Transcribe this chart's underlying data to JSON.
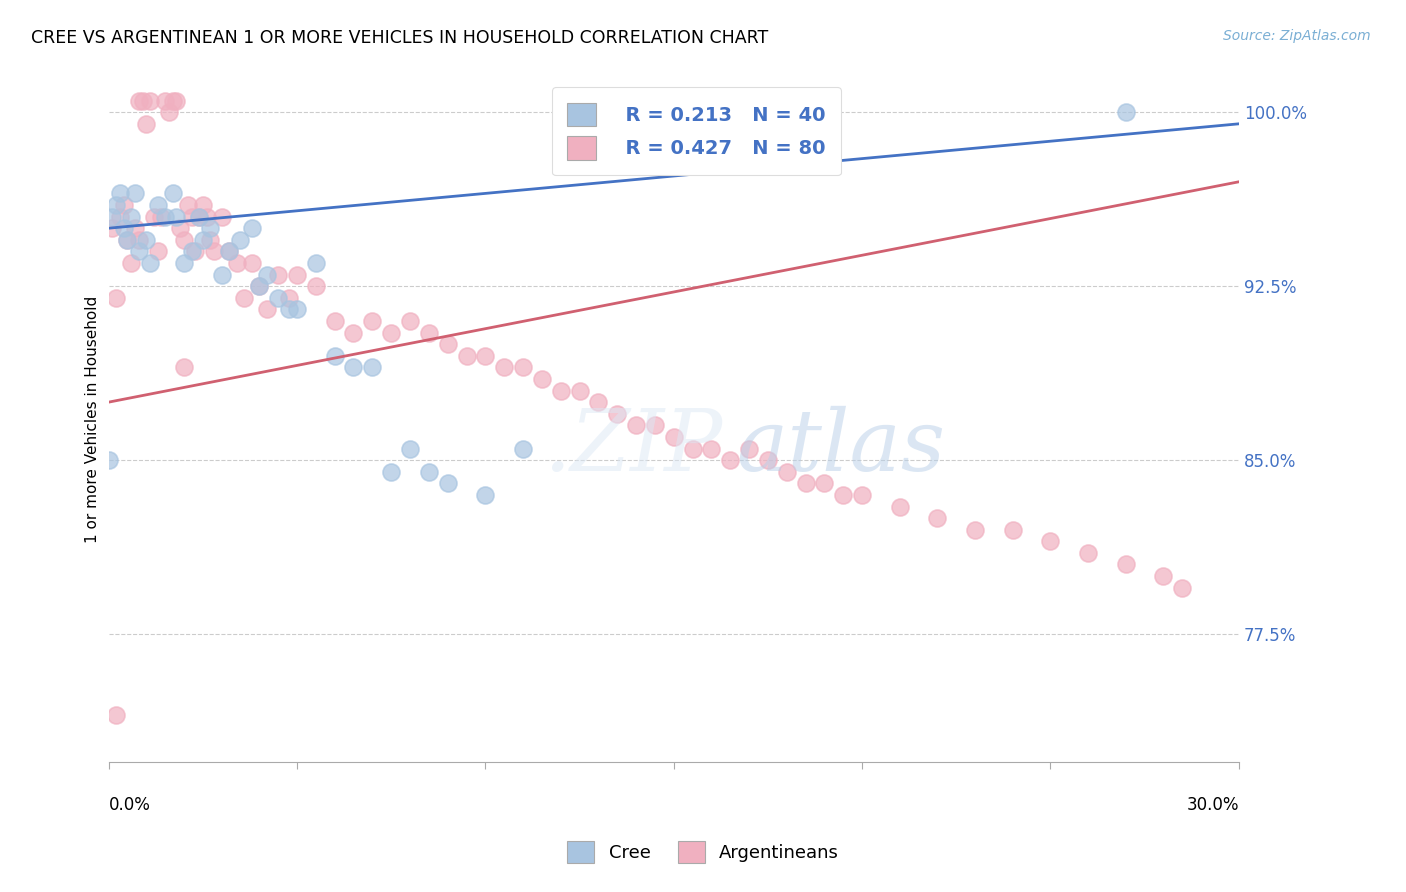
{
  "title": "CREE VS ARGENTINEAN 1 OR MORE VEHICLES IN HOUSEHOLD CORRELATION CHART",
  "source": "Source: ZipAtlas.com",
  "ylabel": "1 or more Vehicles in Household",
  "cree_label": "Cree",
  "arg_label": "Argentineans",
  "legend_blue_r": "R = 0.213",
  "legend_blue_n": "N = 40",
  "legend_pink_r": "R = 0.427",
  "legend_pink_n": "N = 80",
  "blue_scatter_color": "#a8c4e0",
  "pink_scatter_color": "#f0b0c0",
  "blue_line_color": "#4472c4",
  "pink_line_color": "#d06070",
  "text_color": "#4472c4",
  "grid_color": "#cccccc",
  "background_color": "#ffffff",
  "xmin": 0.0,
  "xmax": 0.3,
  "ymin": 72.0,
  "ymax": 101.5,
  "yticks": [
    100.0,
    92.5,
    85.0,
    77.5
  ],
  "ytick_labels": [
    "100.0%",
    "92.5%",
    "85.0%",
    "77.5%"
  ],
  "cree_x": [
    0.001,
    0.002,
    0.003,
    0.004,
    0.005,
    0.006,
    0.007,
    0.008,
    0.01,
    0.011,
    0.013,
    0.015,
    0.017,
    0.018,
    0.02,
    0.022,
    0.024,
    0.025,
    0.027,
    0.03,
    0.032,
    0.035,
    0.038,
    0.04,
    0.042,
    0.045,
    0.048,
    0.05,
    0.055,
    0.06,
    0.065,
    0.07,
    0.075,
    0.08,
    0.085,
    0.09,
    0.1,
    0.11,
    0.27,
    0.0
  ],
  "cree_y": [
    95.5,
    96.0,
    96.5,
    95.0,
    94.5,
    95.5,
    96.5,
    94.0,
    94.5,
    93.5,
    96.0,
    95.5,
    96.5,
    95.5,
    93.5,
    94.0,
    95.5,
    94.5,
    95.0,
    93.0,
    94.0,
    94.5,
    95.0,
    92.5,
    93.0,
    92.0,
    91.5,
    91.5,
    93.5,
    89.5,
    89.0,
    89.0,
    84.5,
    85.5,
    84.5,
    84.0,
    83.5,
    85.5,
    100.0,
    85.0
  ],
  "arg_x": [
    0.001,
    0.002,
    0.003,
    0.004,
    0.005,
    0.006,
    0.007,
    0.008,
    0.009,
    0.01,
    0.011,
    0.012,
    0.013,
    0.014,
    0.015,
    0.016,
    0.017,
    0.018,
    0.019,
    0.02,
    0.021,
    0.022,
    0.023,
    0.024,
    0.025,
    0.026,
    0.027,
    0.028,
    0.03,
    0.032,
    0.034,
    0.036,
    0.038,
    0.04,
    0.042,
    0.045,
    0.048,
    0.05,
    0.055,
    0.06,
    0.065,
    0.07,
    0.075,
    0.08,
    0.085,
    0.09,
    0.095,
    0.1,
    0.105,
    0.11,
    0.115,
    0.12,
    0.125,
    0.13,
    0.135,
    0.14,
    0.145,
    0.15,
    0.155,
    0.16,
    0.165,
    0.17,
    0.175,
    0.18,
    0.185,
    0.19,
    0.195,
    0.2,
    0.21,
    0.22,
    0.23,
    0.24,
    0.25,
    0.26,
    0.27,
    0.28,
    0.285,
    0.002,
    0.008,
    0.02
  ],
  "arg_y": [
    95.0,
    74.0,
    95.5,
    96.0,
    94.5,
    93.5,
    95.0,
    100.5,
    100.5,
    99.5,
    100.5,
    95.5,
    94.0,
    95.5,
    100.5,
    100.0,
    100.5,
    100.5,
    95.0,
    94.5,
    96.0,
    95.5,
    94.0,
    95.5,
    96.0,
    95.5,
    94.5,
    94.0,
    95.5,
    94.0,
    93.5,
    92.0,
    93.5,
    92.5,
    91.5,
    93.0,
    92.0,
    93.0,
    92.5,
    91.0,
    90.5,
    91.0,
    90.5,
    91.0,
    90.5,
    90.0,
    89.5,
    89.5,
    89.0,
    89.0,
    88.5,
    88.0,
    88.0,
    87.5,
    87.0,
    86.5,
    86.5,
    86.0,
    85.5,
    85.5,
    85.0,
    85.5,
    85.0,
    84.5,
    84.0,
    84.0,
    83.5,
    83.5,
    83.0,
    82.5,
    82.0,
    82.0,
    81.5,
    81.0,
    80.5,
    80.0,
    79.5,
    92.0,
    94.5,
    89.0
  ]
}
